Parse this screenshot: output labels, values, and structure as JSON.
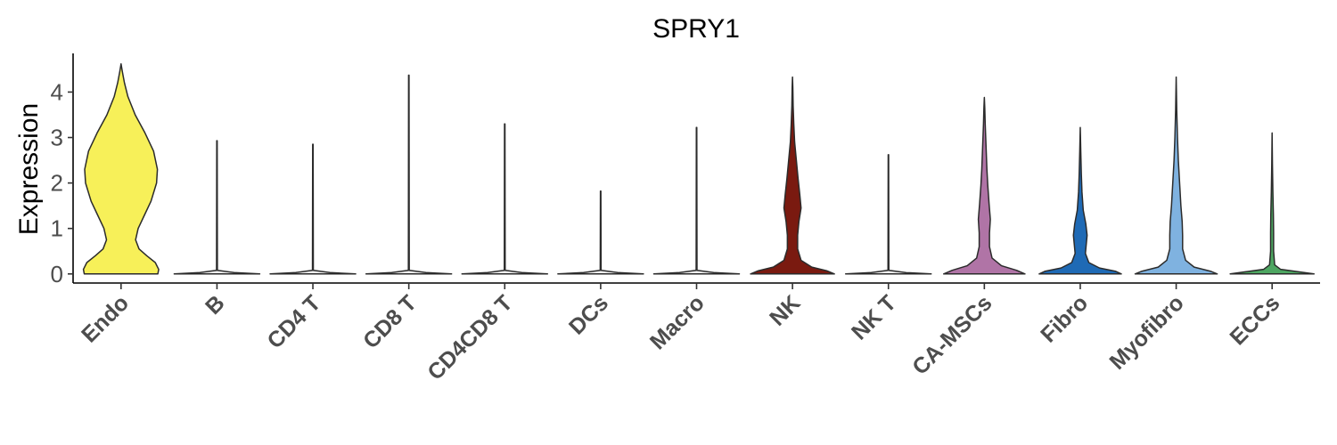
{
  "chart_data": {
    "type": "violin",
    "title": "SPRY1",
    "xlabel": "",
    "ylabel": "Expression",
    "ylim": [
      -0.2,
      4.85
    ],
    "yticks": [
      0,
      1,
      2,
      3,
      4
    ],
    "grid": false,
    "legend": "none",
    "categories": [
      "Endo",
      "B",
      "CD4 T",
      "CD8 T",
      "CD4CD8 T",
      "DCs",
      "Macro",
      "NK",
      "NK T",
      "CA-MSCs",
      "Fibro",
      "Myofibro",
      "ECCs"
    ],
    "series": [
      {
        "category": "Endo",
        "color": "#f7f059",
        "max": 4.62,
        "profile": [
          [
            0,
            0.86
          ],
          [
            0.1,
            0.88
          ],
          [
            0.25,
            0.8
          ],
          [
            0.4,
            0.6
          ],
          [
            0.55,
            0.42
          ],
          [
            0.75,
            0.34
          ],
          [
            1.0,
            0.4
          ],
          [
            1.3,
            0.55
          ],
          [
            1.6,
            0.7
          ],
          [
            2.0,
            0.83
          ],
          [
            2.3,
            0.85
          ],
          [
            2.7,
            0.76
          ],
          [
            3.1,
            0.56
          ],
          [
            3.5,
            0.33
          ],
          [
            3.9,
            0.16
          ],
          [
            4.2,
            0.08
          ],
          [
            4.45,
            0.03
          ],
          [
            4.62,
            0
          ]
        ]
      },
      {
        "category": "B",
        "color": "#f0f0f0",
        "max": 2.93,
        "profile": [
          [
            0,
            1.0
          ],
          [
            0.03,
            0.4
          ],
          [
            0.08,
            0.01
          ],
          [
            2.93,
            0.005
          ]
        ]
      },
      {
        "category": "CD4 T",
        "color": "#f0f0f0",
        "max": 2.85,
        "profile": [
          [
            0,
            1.0
          ],
          [
            0.03,
            0.4
          ],
          [
            0.08,
            0.01
          ],
          [
            2.85,
            0.005
          ]
        ]
      },
      {
        "category": "CD8 T",
        "color": "#f0f0f0",
        "max": 4.37,
        "profile": [
          [
            0,
            1.0
          ],
          [
            0.03,
            0.4
          ],
          [
            0.08,
            0.01
          ],
          [
            4.37,
            0.005
          ]
        ]
      },
      {
        "category": "CD4CD8 T",
        "color": "#f0f0f0",
        "max": 3.3,
        "profile": [
          [
            0,
            1.0
          ],
          [
            0.03,
            0.4
          ],
          [
            0.08,
            0.01
          ],
          [
            3.3,
            0.005
          ]
        ]
      },
      {
        "category": "DCs",
        "color": "#f0f0f0",
        "max": 1.82,
        "profile": [
          [
            0,
            1.0
          ],
          [
            0.03,
            0.4
          ],
          [
            0.08,
            0.01
          ],
          [
            1.82,
            0.005
          ]
        ]
      },
      {
        "category": "Macro",
        "color": "#f0f0f0",
        "max": 3.22,
        "profile": [
          [
            0,
            1.0
          ],
          [
            0.03,
            0.4
          ],
          [
            0.08,
            0.01
          ],
          [
            3.22,
            0.005
          ]
        ]
      },
      {
        "category": "NK",
        "color": "#7a1a10",
        "max": 4.33,
        "profile": [
          [
            0,
            0.98
          ],
          [
            0.07,
            0.8
          ],
          [
            0.15,
            0.45
          ],
          [
            0.3,
            0.2
          ],
          [
            0.55,
            0.12
          ],
          [
            0.85,
            0.12
          ],
          [
            1.15,
            0.15
          ],
          [
            1.45,
            0.2
          ],
          [
            1.75,
            0.17
          ],
          [
            2.1,
            0.13
          ],
          [
            2.5,
            0.09
          ],
          [
            2.9,
            0.05
          ],
          [
            3.3,
            0.03
          ],
          [
            3.7,
            0.015
          ],
          [
            4.1,
            0.008
          ],
          [
            4.33,
            0
          ]
        ]
      },
      {
        "category": "NK T",
        "color": "#f0f0f0",
        "max": 2.62,
        "profile": [
          [
            0,
            1.0
          ],
          [
            0.03,
            0.4
          ],
          [
            0.08,
            0.01
          ],
          [
            2.62,
            0.005
          ]
        ]
      },
      {
        "category": "CA-MSCs",
        "color": "#b074a6",
        "max": 3.88,
        "profile": [
          [
            0,
            0.95
          ],
          [
            0.08,
            0.75
          ],
          [
            0.18,
            0.4
          ],
          [
            0.35,
            0.18
          ],
          [
            0.6,
            0.12
          ],
          [
            0.9,
            0.12
          ],
          [
            1.2,
            0.14
          ],
          [
            1.55,
            0.11
          ],
          [
            1.95,
            0.08
          ],
          [
            2.3,
            0.06
          ],
          [
            2.8,
            0.04
          ],
          [
            3.3,
            0.02
          ],
          [
            3.65,
            0.01
          ],
          [
            3.88,
            0
          ]
        ]
      },
      {
        "category": "Fibro",
        "color": "#1f6ab5",
        "max": 3.22,
        "profile": [
          [
            0,
            0.96
          ],
          [
            0.06,
            0.82
          ],
          [
            0.13,
            0.45
          ],
          [
            0.25,
            0.2
          ],
          [
            0.45,
            0.12
          ],
          [
            0.65,
            0.14
          ],
          [
            0.85,
            0.16
          ],
          [
            1.1,
            0.13
          ],
          [
            1.4,
            0.07
          ],
          [
            1.8,
            0.04
          ],
          [
            2.2,
            0.025
          ],
          [
            2.7,
            0.012
          ],
          [
            3.22,
            0
          ]
        ]
      },
      {
        "category": "Myofibro",
        "color": "#7fb2e0",
        "max": 4.33,
        "profile": [
          [
            0,
            0.96
          ],
          [
            0.06,
            0.8
          ],
          [
            0.15,
            0.42
          ],
          [
            0.3,
            0.22
          ],
          [
            0.55,
            0.15
          ],
          [
            0.85,
            0.15
          ],
          [
            1.15,
            0.14
          ],
          [
            1.5,
            0.11
          ],
          [
            2.0,
            0.08
          ],
          [
            2.5,
            0.05
          ],
          [
            3.0,
            0.03
          ],
          [
            3.6,
            0.013
          ],
          [
            4.33,
            0
          ]
        ]
      },
      {
        "category": "ECCs",
        "color": "#4da661",
        "max": 3.1,
        "profile": [
          [
            0,
            0.98
          ],
          [
            0.05,
            0.6
          ],
          [
            0.1,
            0.2
          ],
          [
            0.2,
            0.06
          ],
          [
            0.5,
            0.035
          ],
          [
            0.9,
            0.035
          ],
          [
            1.3,
            0.03
          ],
          [
            1.8,
            0.018
          ],
          [
            2.4,
            0.008
          ],
          [
            3.1,
            0
          ]
        ]
      }
    ]
  }
}
